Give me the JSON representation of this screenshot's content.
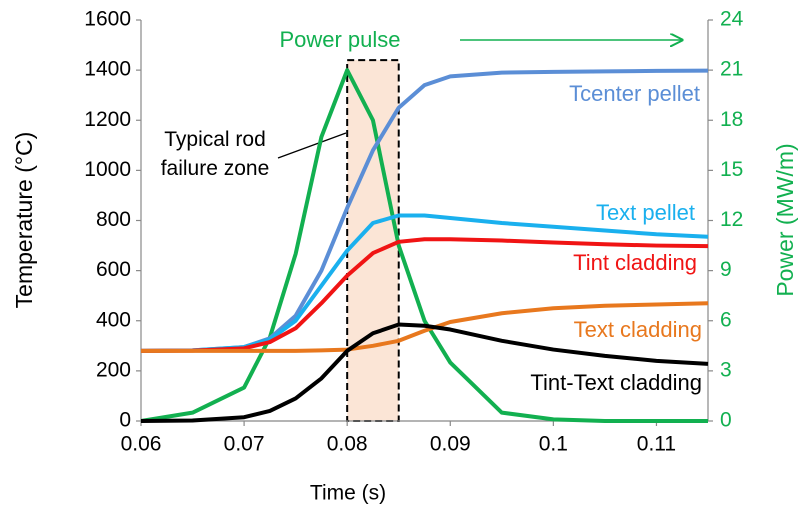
{
  "chart_data": {
    "type": "line",
    "xlabel": "Time (s)",
    "ylabel": "Temperature (°C)",
    "y2label": "Power (MW/m)",
    "x": [
      0.06,
      0.065,
      0.07,
      0.0725,
      0.075,
      0.0775,
      0.08,
      0.0825,
      0.085,
      0.0875,
      0.09,
      0.095,
      0.1,
      0.105,
      0.11,
      0.115
    ],
    "xlim": [
      0.06,
      0.115
    ],
    "xticks": [
      0.06,
      0.07,
      0.08,
      0.09,
      0.1,
      0.11
    ],
    "ylim": [
      0,
      1600
    ],
    "yticks": [
      0,
      200,
      400,
      600,
      800,
      1000,
      1200,
      1400,
      1600
    ],
    "y2lim": [
      0,
      24
    ],
    "y2ticks": [
      0,
      3,
      6,
      9,
      12,
      15,
      18,
      21,
      24
    ],
    "series": [
      {
        "name": "Tcenter pellet",
        "color": "#5b8ed6",
        "values": [
          280,
          282,
          295,
          330,
          420,
          600,
          850,
          1080,
          1250,
          1340,
          1375,
          1390,
          1393,
          1395,
          1397,
          1398
        ]
      },
      {
        "name": "Text pellet",
        "color": "#1ab0ee",
        "values": [
          280,
          282,
          295,
          325,
          400,
          540,
          680,
          790,
          820,
          820,
          810,
          790,
          775,
          760,
          745,
          735
        ]
      },
      {
        "name": "Tint cladding",
        "color": "#f01414",
        "values": [
          280,
          281,
          290,
          315,
          370,
          470,
          580,
          670,
          715,
          725,
          725,
          720,
          712,
          705,
          700,
          698
        ]
      },
      {
        "name": "Text  cladding",
        "color": "#e8781e",
        "values": [
          280,
          280,
          280,
          280,
          280,
          282,
          285,
          300,
          320,
          360,
          395,
          430,
          450,
          460,
          465,
          470
        ]
      },
      {
        "name": "Tint-Text cladding",
        "color": "#000000",
        "values": [
          0,
          2,
          15,
          40,
          90,
          170,
          280,
          350,
          385,
          380,
          365,
          320,
          285,
          260,
          240,
          228
        ]
      },
      {
        "name": "Power pulse",
        "color": "#12b050",
        "axis": "y2",
        "values": [
          0,
          0.5,
          2,
          5,
          10,
          17,
          21,
          18,
          10.5,
          6,
          3.5,
          0.5,
          0.1,
          0,
          0,
          0
        ]
      }
    ],
    "failure_zone": {
      "label": "Typical rod\nfailure zone",
      "x": [
        0.08,
        0.085
      ],
      "top": 1440
    }
  }
}
